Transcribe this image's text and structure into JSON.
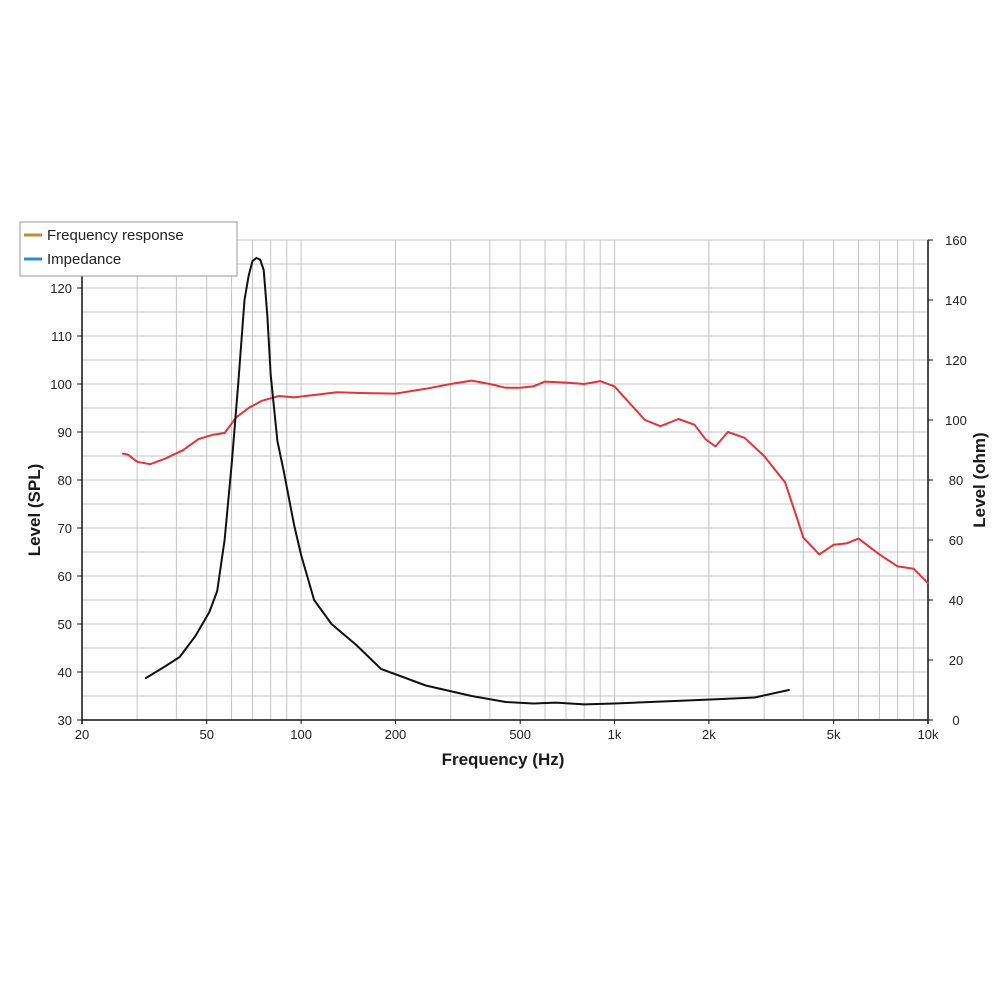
{
  "chart_data": {
    "type": "line",
    "title": "",
    "xlabel": "Frequency (Hz)",
    "ylabel": "Level (SPL)",
    "y2label": "Level (ohm)",
    "x_scale": "log",
    "xlim": [
      20,
      10000
    ],
    "ylim": [
      30,
      130
    ],
    "y2lim": [
      0,
      160
    ],
    "grid": true,
    "legend_position": "top-left",
    "x_ticks": [
      {
        "value": 20,
        "label": "20"
      },
      {
        "value": 50,
        "label": "50"
      },
      {
        "value": 100,
        "label": "100"
      },
      {
        "value": 200,
        "label": "200"
      },
      {
        "value": 500,
        "label": "500"
      },
      {
        "value": 1000,
        "label": "1k"
      },
      {
        "value": 2000,
        "label": "2k"
      },
      {
        "value": 5000,
        "label": "5k"
      },
      {
        "value": 10000,
        "label": "10k"
      }
    ],
    "y_ticks": [
      30,
      40,
      50,
      60,
      70,
      80,
      90,
      100,
      110,
      120
    ],
    "y2_ticks": [
      0,
      20,
      40,
      60,
      80,
      100,
      120,
      140,
      160
    ],
    "legend": [
      {
        "name": "Frequency response",
        "color": "#b8913a"
      },
      {
        "name": "Impedance",
        "color": "#2b8ad8"
      }
    ],
    "series": [
      {
        "axis": "left",
        "color": "#e0343b",
        "x": [
          27,
          28,
          30,
          33,
          37,
          42,
          47,
          52,
          57,
          62,
          68,
          75,
          85,
          95,
          110,
          130,
          160,
          200,
          250,
          300,
          350,
          400,
          450,
          500,
          550,
          600,
          700,
          800,
          900,
          1000,
          1100,
          1250,
          1400,
          1600,
          1800,
          1950,
          2100,
          2300,
          2600,
          3000,
          3500,
          3800,
          4000,
          4500,
          5000,
          5500,
          6000,
          7000,
          8000,
          9000,
          10000
        ],
        "y": [
          85.5,
          85.3,
          83.8,
          83.3,
          84.5,
          86.2,
          88.5,
          89.4,
          89.8,
          93,
          95,
          96.5,
          97.5,
          97.2,
          97.7,
          98.3,
          98.1,
          98,
          99,
          100,
          100.7,
          100,
          99.2,
          99.2,
          99.5,
          100.5,
          100.3,
          100,
          100.6,
          99.5,
          96.5,
          92.5,
          91.2,
          92.7,
          91.5,
          88.5,
          87,
          90,
          88.8,
          85,
          79.5,
          72.5,
          68,
          64.5,
          66.5,
          66.8,
          67.8,
          64.5,
          62,
          61.5,
          58.5
        ]
      },
      {
        "axis": "right",
        "color": "#111111",
        "x": [
          32,
          37,
          41,
          46,
          51,
          54,
          57,
          60,
          63,
          66,
          68,
          70,
          72,
          74,
          76,
          78,
          80,
          84,
          88,
          95,
          100,
          110,
          125,
          150,
          180,
          250,
          350,
          450,
          550,
          650,
          800,
          1000,
          1300,
          1700,
          2200,
          2800,
          3600
        ],
        "y": [
          14,
          18,
          21,
          28,
          36,
          43,
          60,
          85,
          112,
          140,
          148,
          153,
          154,
          153.5,
          150,
          135,
          115,
          93,
          83,
          65,
          55,
          40,
          32,
          25,
          17,
          11.5,
          8,
          6,
          5.5,
          5.8,
          5.2,
          5.5,
          6,
          6.5,
          7,
          7.5,
          10
        ]
      }
    ]
  }
}
